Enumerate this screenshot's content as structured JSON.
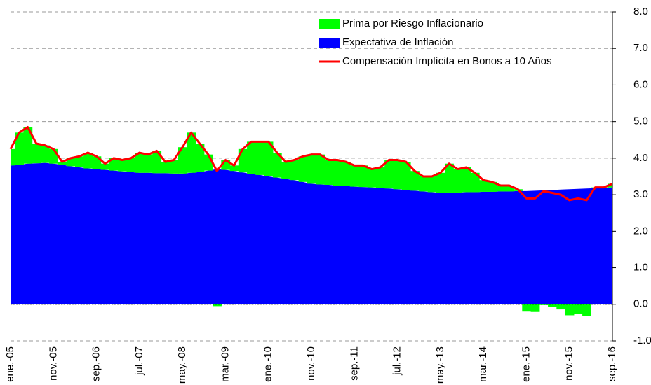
{
  "chart_data": {
    "type": "stacked_area",
    "categories": [
      "ene.-05",
      null,
      null,
      null,
      null,
      "nov.-05",
      null,
      null,
      null,
      null,
      "sep.-06",
      null,
      null,
      null,
      null,
      "jul.-07",
      null,
      null,
      null,
      null,
      "may.-08",
      null,
      null,
      null,
      null,
      "mar.-09",
      null,
      null,
      null,
      null,
      "ene.-10",
      null,
      null,
      null,
      null,
      "nov.-10",
      null,
      null,
      null,
      null,
      "sep.-11",
      null,
      null,
      null,
      null,
      "jul.-12",
      null,
      null,
      null,
      null,
      "may.-13",
      null,
      null,
      null,
      null,
      "mar.-14",
      null,
      null,
      null,
      null,
      "ene.-15",
      null,
      null,
      null,
      null,
      "nov.-15",
      null,
      null,
      null,
      null,
      "sep.-16"
    ],
    "series": [
      {
        "name": "Prima por Riesgo Inflacionario",
        "color": "#00ff00",
        "type": "bar",
        "stack": true,
        "values": [
          0.45,
          0.88,
          1.0,
          0.54,
          0.48,
          0.4,
          0.08,
          0.22,
          0.3,
          0.43,
          0.35,
          0.17,
          0.34,
          0.31,
          0.38,
          0.55,
          0.5,
          0.61,
          0.31,
          0.37,
          0.72,
          1.1,
          0.78,
          0.44,
          -0.05,
          0.27,
          0.15,
          0.64,
          0.88,
          0.91,
          0.95,
          0.68,
          0.47,
          0.55,
          0.7,
          0.8,
          0.82,
          0.68,
          0.7,
          0.66,
          0.58,
          0.59,
          0.5,
          0.57,
          0.78,
          0.8,
          0.77,
          0.54,
          0.41,
          0.43,
          0.55,
          0.79,
          0.64,
          0.68,
          0.53,
          0.32,
          0.27,
          0.16,
          0.16,
          0.05,
          -0.2,
          -0.21,
          -0.02,
          -0.08,
          -0.14,
          -0.3,
          -0.26,
          -0.32,
          0.02,
          0.01,
          0.1
        ]
      },
      {
        "name": "Expectativa de Inflación",
        "color": "#0000ff",
        "type": "area",
        "values": [
          3.8,
          3.82,
          3.85,
          3.86,
          3.87,
          3.85,
          3.82,
          3.78,
          3.75,
          3.72,
          3.7,
          3.68,
          3.66,
          3.64,
          3.62,
          3.6,
          3.6,
          3.59,
          3.59,
          3.58,
          3.58,
          3.6,
          3.62,
          3.66,
          3.7,
          3.68,
          3.65,
          3.61,
          3.57,
          3.54,
          3.5,
          3.47,
          3.43,
          3.4,
          3.35,
          3.3,
          3.28,
          3.27,
          3.25,
          3.24,
          3.22,
          3.21,
          3.2,
          3.18,
          3.17,
          3.15,
          3.13,
          3.11,
          3.09,
          3.07,
          3.05,
          3.06,
          3.06,
          3.07,
          3.07,
          3.08,
          3.08,
          3.09,
          3.09,
          3.1,
          3.1,
          3.11,
          3.12,
          3.13,
          3.14,
          3.15,
          3.16,
          3.17,
          3.18,
          3.19,
          3.2
        ]
      },
      {
        "name": "Compensación Implícita en Bonos a 10 Años",
        "color": "#ff0000",
        "type": "line",
        "values": [
          4.25,
          4.7,
          4.85,
          4.4,
          4.35,
          4.25,
          3.9,
          4.0,
          4.05,
          4.15,
          4.05,
          3.85,
          4.0,
          3.95,
          4.0,
          4.15,
          4.1,
          4.2,
          3.9,
          3.95,
          4.3,
          4.7,
          4.4,
          4.1,
          3.65,
          3.95,
          3.8,
          4.25,
          4.45,
          4.45,
          4.45,
          4.15,
          3.9,
          3.95,
          4.05,
          4.1,
          4.1,
          3.95,
          3.95,
          3.9,
          3.8,
          3.8,
          3.7,
          3.75,
          3.95,
          3.95,
          3.9,
          3.65,
          3.5,
          3.5,
          3.6,
          3.85,
          3.7,
          3.75,
          3.6,
          3.4,
          3.35,
          3.25,
          3.25,
          3.15,
          2.9,
          2.9,
          3.1,
          3.05,
          3.0,
          2.85,
          2.9,
          2.85,
          3.2,
          3.2,
          3.3
        ]
      }
    ],
    "ylim": [
      -1,
      8
    ],
    "yticks": [
      {
        "value": -1,
        "label": "-1.0"
      },
      {
        "value": 0,
        "label": "0.0"
      },
      {
        "value": 1,
        "label": "1.0"
      },
      {
        "value": 2,
        "label": "2.0"
      },
      {
        "value": 3,
        "label": "3.0"
      },
      {
        "value": 4,
        "label": "4.0"
      },
      {
        "value": 5,
        "label": "5.0"
      },
      {
        "value": 6,
        "label": "6.0"
      },
      {
        "value": 7,
        "label": "7.0"
      },
      {
        "value": 8,
        "label": "8.0"
      }
    ],
    "grid": true,
    "legend": "top-right"
  }
}
